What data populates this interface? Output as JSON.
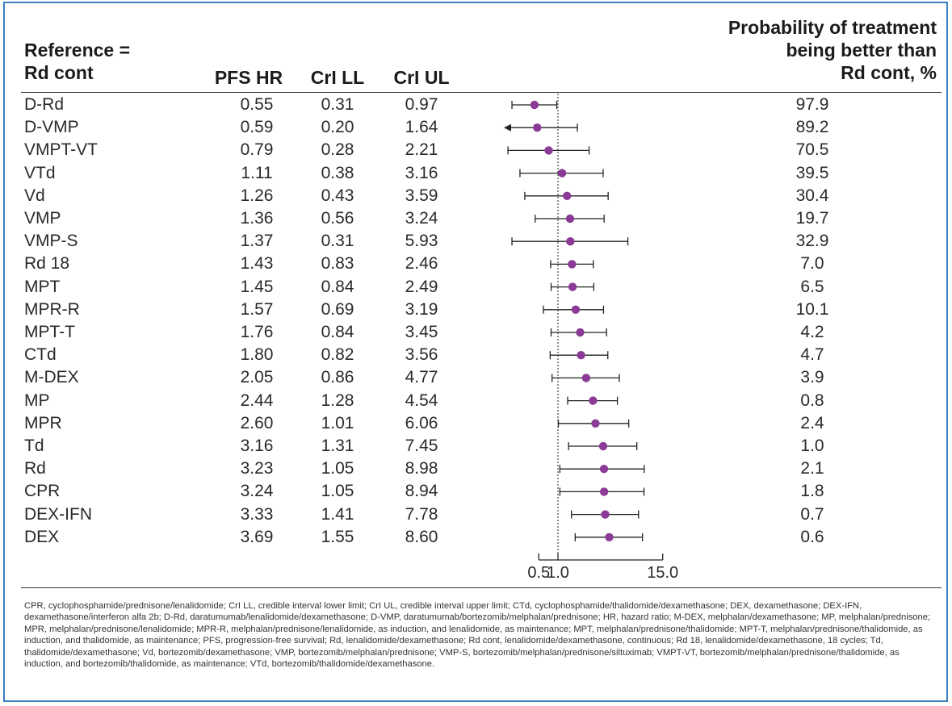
{
  "header": {
    "reference_line1": "Reference =",
    "reference_line2": "Rd cont",
    "col_hr": "PFS HR",
    "col_ll": "CrI LL",
    "col_ul": "CrI UL",
    "prob_line1": "Probability of treatment",
    "prob_line2": "being better than",
    "prob_line3": "Rd cont, %"
  },
  "colors": {
    "marker": "#8b3a96",
    "line": "#222222",
    "border": "#3b7fbf"
  },
  "chart_data": {
    "type": "forest",
    "x_scale": "log",
    "reference_line": 1.0,
    "xticks": [
      "0.5",
      "1.0",
      "15.0"
    ],
    "rows": [
      {
        "name": "D-Rd",
        "hr": "0.55",
        "ll": "0.31",
        "ul": "0.97",
        "prob": "97.9"
      },
      {
        "name": "D-VMP",
        "hr": "0.59",
        "ll": "0.20",
        "ul": "1.64",
        "prob": "89.2"
      },
      {
        "name": "VMPT-VT",
        "hr": "0.79",
        "ll": "0.28",
        "ul": "2.21",
        "prob": "70.5"
      },
      {
        "name": "VTd",
        "hr": "1.11",
        "ll": "0.38",
        "ul": "3.16",
        "prob": "39.5"
      },
      {
        "name": "Vd",
        "hr": "1.26",
        "ll": "0.43",
        "ul": "3.59",
        "prob": "30.4"
      },
      {
        "name": "VMP",
        "hr": "1.36",
        "ll": "0.56",
        "ul": "3.24",
        "prob": "19.7"
      },
      {
        "name": "VMP-S",
        "hr": "1.37",
        "ll": "0.31",
        "ul": "5.93",
        "prob": "32.9"
      },
      {
        "name": "Rd 18",
        "hr": "1.43",
        "ll": "0.83",
        "ul": "2.46",
        "prob": "7.0"
      },
      {
        "name": "MPT",
        "hr": "1.45",
        "ll": "0.84",
        "ul": "2.49",
        "prob": "6.5"
      },
      {
        "name": "MPR-R",
        "hr": "1.57",
        "ll": "0.69",
        "ul": "3.19",
        "prob": "10.1"
      },
      {
        "name": "MPT-T",
        "hr": "1.76",
        "ll": "0.84",
        "ul": "3.45",
        "prob": "4.2"
      },
      {
        "name": "CTd",
        "hr": "1.80",
        "ll": "0.82",
        "ul": "3.56",
        "prob": "4.7"
      },
      {
        "name": "M-DEX",
        "hr": "2.05",
        "ll": "0.86",
        "ul": "4.77",
        "prob": "3.9"
      },
      {
        "name": "MP",
        "hr": "2.44",
        "ll": "1.28",
        "ul": "4.54",
        "prob": "0.8"
      },
      {
        "name": "MPR",
        "hr": "2.60",
        "ll": "1.01",
        "ul": "6.06",
        "prob": "2.4"
      },
      {
        "name": "Td",
        "hr": "3.16",
        "ll": "1.31",
        "ul": "7.45",
        "prob": "1.0"
      },
      {
        "name": "Rd",
        "hr": "3.23",
        "ll": "1.05",
        "ul": "8.98",
        "prob": "2.1"
      },
      {
        "name": "CPR",
        "hr": "3.24",
        "ll": "1.05",
        "ul": "8.94",
        "prob": "1.8"
      },
      {
        "name": "DEX-IFN",
        "hr": "3.33",
        "ll": "1.41",
        "ul": "7.78",
        "prob": "0.7"
      },
      {
        "name": "DEX",
        "hr": "3.69",
        "ll": "1.55",
        "ul": "8.60",
        "prob": "0.6"
      }
    ]
  },
  "footnote": "CPR, cyclophosphamide/prednisone/lenalidomide; CrI LL, credible interval lower limit; CrI UL, credible interval upper limit; CTd, cyclophosphamide/thalidomide/dexamethasone; DEX, dexamethasone; DEX-IFN, dexamethasone/interferon alfa 2b; D-Rd, daratumumab/lenalidomide/dexamethasone; D-VMP, daratumumab/bortezomib/melphalan/prednisone; HR, hazard ratio; M-DEX, melphalan/dexamethasone; MP, melphalan/prednisone; MPR, melphalan/prednisone/lenalidomide; MPR-R, melphalan/prednisone/lenalidomide, as induction, and lenalidomide, as maintenance; MPT, melphalan/prednisone/thalidomide; MPT-T, melphalan/prednisone/thalidomide, as induction, and thalidomide, as maintenance; PFS, progression-free survival; Rd, lenalidomide/dexamethasone; Rd cont, lenalidomide/dexamethasone, continuous; Rd 18, lenalidomide/dexamethasone, 18 cycles; Td, thalidomide/dexamethasone; Vd, bortezomib/dexamethasone; VMP, bortezomib/melphalan/prednisone; VMP-S, bortezomib/melphalan/prednisone/siltuximab; VMPT-VT, bortezomib/melphalan/prednisone/thalidomide, as induction, and bortezomib/thalidomide, as maintenance; VTd, bortezomib/thalidomide/dexamethasone."
}
